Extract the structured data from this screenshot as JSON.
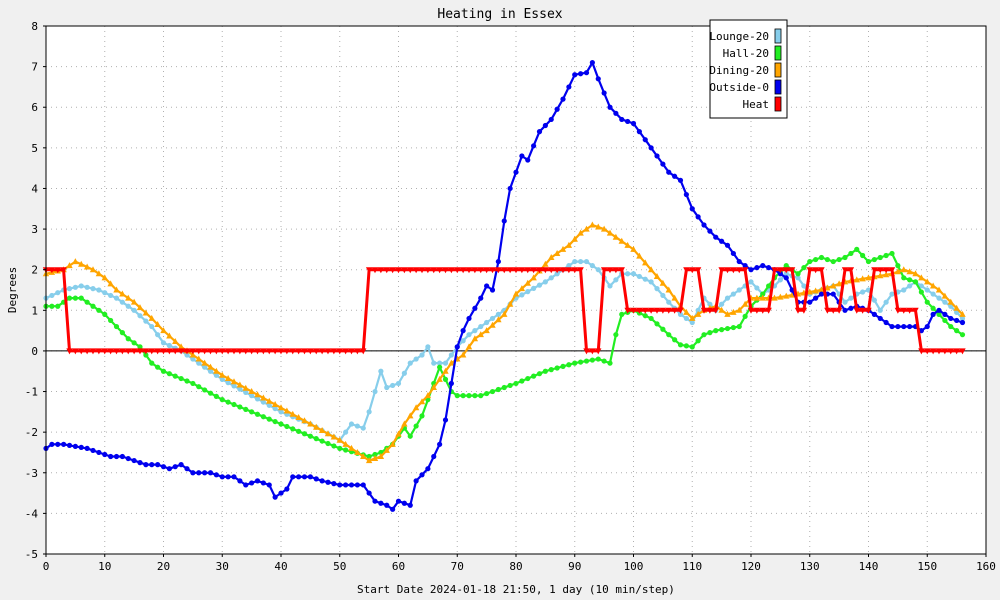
{
  "chart_data": {
    "type": "line",
    "title": "Heating in Essex",
    "xlabel": "Start Date 2024-01-18 21:50, 1 day (10 min/step)",
    "ylabel": "Degrees",
    "xlim": [
      0,
      160
    ],
    "ylim": [
      -5,
      8
    ],
    "xticks": [
      "0",
      "10",
      "20",
      "30",
      "40",
      "50",
      "60",
      "70",
      "80",
      "90",
      "100",
      "110",
      "120",
      "130",
      "140",
      "150",
      "160"
    ],
    "yticks": [
      "-5",
      "-4",
      "-3",
      "-2",
      "-1",
      "0",
      "1",
      "2",
      "3",
      "4",
      "5",
      "6",
      "7",
      "8"
    ],
    "grid": true,
    "legend_position": "top-right",
    "series": [
      {
        "name": "Lounge-20",
        "color": "#87ceeb",
        "marker": "circle",
        "points": [
          [
            0,
            1.3
          ],
          [
            3,
            1.5
          ],
          [
            6,
            1.6
          ],
          [
            9,
            1.5
          ],
          [
            12,
            1.3
          ],
          [
            15,
            1.0
          ],
          [
            18,
            0.6
          ],
          [
            20,
            0.2
          ],
          [
            23,
            0.0
          ],
          [
            26,
            -0.3
          ],
          [
            30,
            -0.7
          ],
          [
            35,
            -1.1
          ],
          [
            40,
            -1.5
          ],
          [
            45,
            -1.8
          ],
          [
            50,
            -2.2
          ],
          [
            52,
            -1.8
          ],
          [
            54,
            -1.9
          ],
          [
            55,
            -1.5
          ],
          [
            57,
            -0.5
          ],
          [
            58,
            -0.9
          ],
          [
            60,
            -0.8
          ],
          [
            62,
            -0.3
          ],
          [
            64,
            -0.1
          ],
          [
            65,
            0.1
          ],
          [
            66,
            -0.3
          ],
          [
            68,
            -0.3
          ],
          [
            70,
            0.1
          ],
          [
            72,
            0.4
          ],
          [
            75,
            0.7
          ],
          [
            78,
            1.0
          ],
          [
            80,
            1.3
          ],
          [
            85,
            1.7
          ],
          [
            88,
            2.0
          ],
          [
            90,
            2.2
          ],
          [
            92,
            2.2
          ],
          [
            94,
            2.0
          ],
          [
            96,
            1.6
          ],
          [
            98,
            1.9
          ],
          [
            100,
            1.9
          ],
          [
            103,
            1.7
          ],
          [
            106,
            1.2
          ],
          [
            108,
            0.9
          ],
          [
            110,
            0.7
          ],
          [
            112,
            1.3
          ],
          [
            114,
            1.0
          ],
          [
            116,
            1.3
          ],
          [
            118,
            1.5
          ],
          [
            120,
            1.7
          ],
          [
            122,
            1.4
          ],
          [
            124,
            1.6
          ],
          [
            126,
            1.9
          ],
          [
            128,
            1.8
          ],
          [
            130,
            1.4
          ],
          [
            132,
            1.5
          ],
          [
            134,
            1.6
          ],
          [
            136,
            1.2
          ],
          [
            138,
            1.4
          ],
          [
            140,
            1.5
          ],
          [
            142,
            1.0
          ],
          [
            144,
            1.4
          ],
          [
            146,
            1.5
          ],
          [
            148,
            1.7
          ],
          [
            150,
            1.5
          ],
          [
            152,
            1.3
          ],
          [
            154,
            1.1
          ],
          [
            156,
            0.8
          ]
        ]
      },
      {
        "name": "Hall-20",
        "color": "#22ee22",
        "marker": "circle",
        "points": [
          [
            0,
            1.1
          ],
          [
            2,
            1.1
          ],
          [
            4,
            1.3
          ],
          [
            6,
            1.3
          ],
          [
            8,
            1.1
          ],
          [
            10,
            0.9
          ],
          [
            12,
            0.6
          ],
          [
            14,
            0.3
          ],
          [
            16,
            0.1
          ],
          [
            18,
            -0.3
          ],
          [
            20,
            -0.5
          ],
          [
            25,
            -0.8
          ],
          [
            30,
            -1.2
          ],
          [
            35,
            -1.5
          ],
          [
            40,
            -1.8
          ],
          [
            45,
            -2.1
          ],
          [
            50,
            -2.4
          ],
          [
            55,
            -2.6
          ],
          [
            57,
            -2.5
          ],
          [
            59,
            -2.3
          ],
          [
            61,
            -1.9
          ],
          [
            62,
            -2.1
          ],
          [
            64,
            -1.6
          ],
          [
            66,
            -0.8
          ],
          [
            67,
            -0.4
          ],
          [
            68,
            -0.7
          ],
          [
            69,
            -1.0
          ],
          [
            70,
            -1.1
          ],
          [
            74,
            -1.1
          ],
          [
            76,
            -1.0
          ],
          [
            80,
            -0.8
          ],
          [
            85,
            -0.5
          ],
          [
            90,
            -0.3
          ],
          [
            94,
            -0.2
          ],
          [
            96,
            -0.3
          ],
          [
            97,
            0.4
          ],
          [
            98,
            0.9
          ],
          [
            100,
            1.0
          ],
          [
            103,
            0.8
          ],
          [
            106,
            0.4
          ],
          [
            108,
            0.15
          ],
          [
            110,
            0.1
          ],
          [
            112,
            0.4
          ],
          [
            114,
            0.5
          ],
          [
            118,
            0.6
          ],
          [
            120,
            1.1
          ],
          [
            122,
            1.4
          ],
          [
            124,
            1.8
          ],
          [
            126,
            2.1
          ],
          [
            128,
            1.9
          ],
          [
            130,
            2.2
          ],
          [
            132,
            2.3
          ],
          [
            134,
            2.2
          ],
          [
            136,
            2.3
          ],
          [
            138,
            2.5
          ],
          [
            140,
            2.2
          ],
          [
            142,
            2.3
          ],
          [
            144,
            2.4
          ],
          [
            146,
            1.8
          ],
          [
            148,
            1.7
          ],
          [
            150,
            1.2
          ],
          [
            152,
            0.9
          ],
          [
            154,
            0.6
          ],
          [
            156,
            0.4
          ]
        ]
      },
      {
        "name": "Dining-20",
        "color": "#ffa500",
        "marker": "triangle",
        "points": [
          [
            0,
            1.9
          ],
          [
            3,
            2.0
          ],
          [
            5,
            2.2
          ],
          [
            8,
            2.0
          ],
          [
            10,
            1.8
          ],
          [
            12,
            1.5
          ],
          [
            15,
            1.2
          ],
          [
            18,
            0.8
          ],
          [
            20,
            0.5
          ],
          [
            23,
            0.1
          ],
          [
            26,
            -0.2
          ],
          [
            30,
            -0.6
          ],
          [
            35,
            -1.0
          ],
          [
            40,
            -1.4
          ],
          [
            45,
            -1.8
          ],
          [
            50,
            -2.2
          ],
          [
            53,
            -2.5
          ],
          [
            55,
            -2.7
          ],
          [
            57,
            -2.6
          ],
          [
            59,
            -2.3
          ],
          [
            61,
            -1.8
          ],
          [
            63,
            -1.4
          ],
          [
            65,
            -1.1
          ],
          [
            67,
            -0.7
          ],
          [
            69,
            -0.3
          ],
          [
            71,
            -0.1
          ],
          [
            73,
            0.3
          ],
          [
            75,
            0.5
          ],
          [
            78,
            0.9
          ],
          [
            80,
            1.4
          ],
          [
            83,
            1.8
          ],
          [
            86,
            2.3
          ],
          [
            89,
            2.6
          ],
          [
            91,
            2.9
          ],
          [
            93,
            3.1
          ],
          [
            95,
            3.0
          ],
          [
            97,
            2.8
          ],
          [
            100,
            2.5
          ],
          [
            103,
            2.0
          ],
          [
            106,
            1.5
          ],
          [
            108,
            1.1
          ],
          [
            110,
            0.8
          ],
          [
            112,
            1.0
          ],
          [
            114,
            1.1
          ],
          [
            116,
            0.9
          ],
          [
            118,
            1.0
          ],
          [
            120,
            1.3
          ],
          [
            124,
            1.3
          ],
          [
            128,
            1.4
          ],
          [
            132,
            1.5
          ],
          [
            136,
            1.7
          ],
          [
            140,
            1.8
          ],
          [
            144,
            1.9
          ],
          [
            146,
            2.0
          ],
          [
            148,
            1.9
          ],
          [
            150,
            1.7
          ],
          [
            152,
            1.5
          ],
          [
            154,
            1.2
          ],
          [
            156,
            0.9
          ]
        ]
      },
      {
        "name": "Outside-0",
        "color": "#0000ee",
        "marker": "circle",
        "points": [
          [
            0,
            -2.4
          ],
          [
            1,
            -2.3
          ],
          [
            3,
            -2.3
          ],
          [
            5,
            -2.35
          ],
          [
            7,
            -2.4
          ],
          [
            9,
            -2.5
          ],
          [
            11,
            -2.6
          ],
          [
            13,
            -2.6
          ],
          [
            15,
            -2.7
          ],
          [
            17,
            -2.8
          ],
          [
            19,
            -2.8
          ],
          [
            21,
            -2.9
          ],
          [
            23,
            -2.8
          ],
          [
            25,
            -3.0
          ],
          [
            28,
            -3.0
          ],
          [
            30,
            -3.1
          ],
          [
            32,
            -3.1
          ],
          [
            34,
            -3.3
          ],
          [
            36,
            -3.2
          ],
          [
            38,
            -3.3
          ],
          [
            39,
            -3.6
          ],
          [
            41,
            -3.4
          ],
          [
            42,
            -3.1
          ],
          [
            45,
            -3.1
          ],
          [
            47,
            -3.2
          ],
          [
            50,
            -3.3
          ],
          [
            52,
            -3.3
          ],
          [
            54,
            -3.3
          ],
          [
            56,
            -3.7
          ],
          [
            58,
            -3.8
          ],
          [
            59,
            -3.9
          ],
          [
            60,
            -3.7
          ],
          [
            62,
            -3.8
          ],
          [
            63,
            -3.2
          ],
          [
            65,
            -2.9
          ],
          [
            67,
            -2.3
          ],
          [
            68,
            -1.7
          ],
          [
            69,
            -0.8
          ],
          [
            70,
            0.1
          ],
          [
            71,
            0.5
          ],
          [
            72,
            0.8
          ],
          [
            74,
            1.3
          ],
          [
            75,
            1.6
          ],
          [
            76,
            1.5
          ],
          [
            77,
            2.2
          ],
          [
            78,
            3.2
          ],
          [
            79,
            4.0
          ],
          [
            80,
            4.4
          ],
          [
            81,
            4.8
          ],
          [
            82,
            4.7
          ],
          [
            84,
            5.4
          ],
          [
            86,
            5.7
          ],
          [
            88,
            6.2
          ],
          [
            90,
            6.8
          ],
          [
            92,
            6.85
          ],
          [
            93,
            7.1
          ],
          [
            94,
            6.7
          ],
          [
            96,
            6.0
          ],
          [
            98,
            5.7
          ],
          [
            100,
            5.6
          ],
          [
            102,
            5.2
          ],
          [
            104,
            4.8
          ],
          [
            106,
            4.4
          ],
          [
            108,
            4.2
          ],
          [
            110,
            3.5
          ],
          [
            112,
            3.1
          ],
          [
            114,
            2.8
          ],
          [
            116,
            2.6
          ],
          [
            118,
            2.2
          ],
          [
            120,
            2.0
          ],
          [
            122,
            2.1
          ],
          [
            124,
            2.0
          ],
          [
            126,
            1.8
          ],
          [
            128,
            1.2
          ],
          [
            130,
            1.2
          ],
          [
            132,
            1.4
          ],
          [
            134,
            1.4
          ],
          [
            136,
            1.0
          ],
          [
            138,
            1.1
          ],
          [
            140,
            1.0
          ],
          [
            142,
            0.8
          ],
          [
            144,
            0.6
          ],
          [
            146,
            0.6
          ],
          [
            148,
            0.6
          ],
          [
            149,
            0.5
          ],
          [
            150,
            0.6
          ],
          [
            151,
            0.9
          ],
          [
            152,
            1.0
          ],
          [
            154,
            0.8
          ],
          [
            156,
            0.7
          ]
        ]
      },
      {
        "name": "Heat",
        "color": "#ff0000",
        "marker": "triangle-down",
        "step_pairs": [
          [
            0,
            2
          ],
          [
            3,
            2
          ],
          [
            4,
            0
          ],
          [
            54,
            0
          ],
          [
            55,
            2
          ],
          [
            91,
            2
          ],
          [
            92,
            0
          ],
          [
            94,
            0
          ],
          [
            95,
            2
          ],
          [
            98,
            2
          ],
          [
            99,
            1
          ],
          [
            108,
            1
          ],
          [
            109,
            2
          ],
          [
            111,
            2
          ],
          [
            112,
            1
          ],
          [
            114,
            1
          ],
          [
            115,
            2
          ],
          [
            119,
            2
          ],
          [
            120,
            1
          ],
          [
            123,
            1
          ],
          [
            124,
            2
          ],
          [
            127,
            2
          ],
          [
            128,
            1
          ],
          [
            129,
            1
          ],
          [
            130,
            2
          ],
          [
            132,
            2
          ],
          [
            133,
            1
          ],
          [
            135,
            1
          ],
          [
            136,
            2
          ],
          [
            137,
            2
          ],
          [
            138,
            1
          ],
          [
            140,
            1
          ],
          [
            141,
            2
          ],
          [
            144,
            2
          ],
          [
            145,
            1
          ],
          [
            148,
            1
          ],
          [
            149,
            0
          ],
          [
            156,
            0
          ]
        ]
      }
    ]
  }
}
